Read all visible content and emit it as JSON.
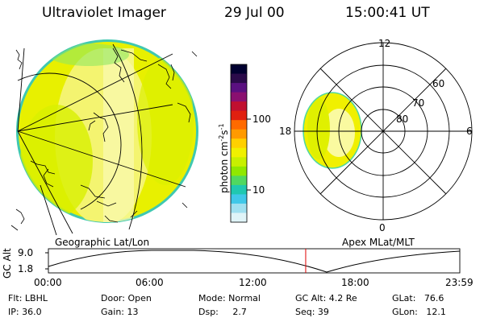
{
  "header": {
    "title": "Ultraviolet Imager",
    "date": "29 Jul 00",
    "time": "15:00:41 UT"
  },
  "geo_panel": {
    "label": "Geographic Lat/Lon"
  },
  "polar_panel": {
    "label": "Apex MLat/MLT",
    "mlt_labels": {
      "top": "12",
      "right": "6",
      "bottom": "0",
      "left": "18"
    },
    "lat_labels": [
      "60",
      "70",
      "80"
    ]
  },
  "colorbar": {
    "unit_main": "photon cm",
    "unit_exp1": "-2",
    "unit_mid": "s",
    "unit_exp2": "-1",
    "ticks": [
      "100",
      "10"
    ],
    "colors": [
      "#000030",
      "#2a0a4a",
      "#5a1080",
      "#8a1070",
      "#c01030",
      "#e02010",
      "#ff6a00",
      "#ff9a00",
      "#ffd000",
      "#f0f000",
      "#c8f000",
      "#90e800",
      "#50d860",
      "#20c8b0",
      "#40c8e8",
      "#a0e0f0",
      "#e0f4f8"
    ]
  },
  "altitude_plot": {
    "ylabel": "GC Alt",
    "yticks": [
      "9.0",
      "1.8"
    ],
    "xticks": [
      "00:00",
      "06:00",
      "12:00",
      "18:00",
      "23:59"
    ],
    "current_time_hours": 15.01
  },
  "status": {
    "flt": "Flt: LBHL",
    "ip": "IP: 36.0",
    "door": "Door: Open",
    "gain": "Gain: 13",
    "mode": "Mode: Normal",
    "dsp": "Dsp:     2.7",
    "gcalt": "GC Alt: 4.2 Re",
    "seq": "Seq: 39",
    "glat": "GLat:   76.6",
    "glon": "GLon:   12.1"
  },
  "colors": {
    "aurora_yellow": "#f0f000",
    "aurora_pale": "#fafaa0",
    "aurora_green": "#c8f000",
    "aurora_edge": "#50d8a0",
    "time_marker": "#e00000"
  }
}
